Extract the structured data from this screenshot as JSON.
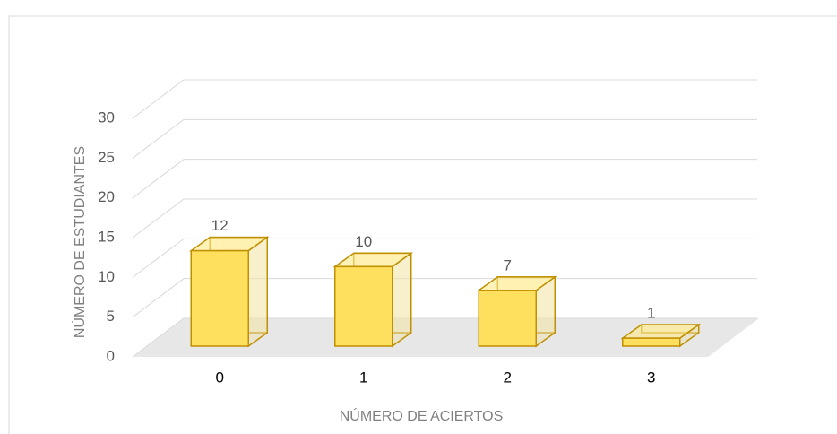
{
  "chart_data": {
    "type": "bar3d",
    "x_label": "NÚMERO DE ACIERTOS",
    "y_label": "NÚMERO DE ESTUDIANTES",
    "categories": [
      "0",
      "1",
      "2",
      "3"
    ],
    "values": [
      12,
      10,
      7,
      1
    ],
    "color": "#ffdf5e",
    "edge_color": "#bf9000",
    "ylim": [
      0,
      30
    ],
    "yticks": [
      0,
      5,
      10,
      15,
      20,
      25,
      30
    ],
    "grid": true
  }
}
